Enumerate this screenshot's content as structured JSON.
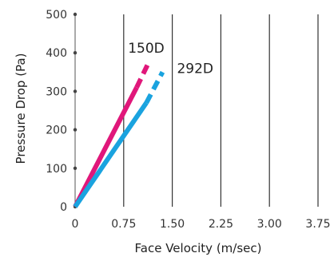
{
  "chart_data": {
    "type": "line",
    "xlabel": "Face Velocity (m/sec)",
    "ylabel": "Pressure Drop (Pa)",
    "xlim": [
      0,
      3.75
    ],
    "ylim": [
      0,
      500
    ],
    "x_ticks": [
      "0",
      "0.75",
      "1.50",
      "2.25",
      "3.00",
      "3.75"
    ],
    "y_ticks": [
      "0",
      "100",
      "200",
      "300",
      "400",
      "500"
    ],
    "grid": "vertical",
    "series": [
      {
        "name": "150D",
        "color": "#e0177a",
        "solid": [
          [
            0,
            0
          ],
          [
            0.95,
            310
          ]
        ],
        "dashed": [
          [
            0.95,
            310
          ],
          [
            1.15,
            380
          ]
        ]
      },
      {
        "name": "292D",
        "color": "#1aa3df",
        "solid": [
          [
            0,
            0
          ],
          [
            1.1,
            270
          ]
        ],
        "dashed": [
          [
            1.1,
            270
          ],
          [
            1.35,
            350
          ]
        ]
      }
    ]
  }
}
